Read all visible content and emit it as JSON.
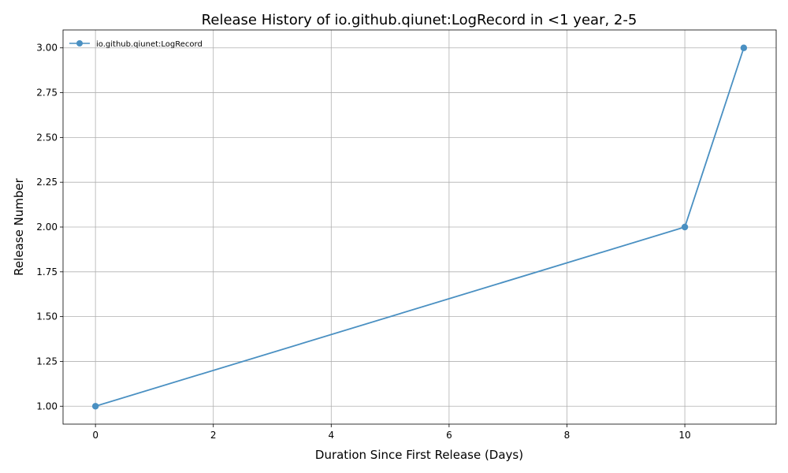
{
  "chart_data": {
    "type": "line",
    "title": "Release History of io.github.qiunet:LogRecord in <1 year, 2-5",
    "xlabel": "Duration Since First Release (Days)",
    "ylabel": "Release Number",
    "xlim": [
      -0.55,
      11.55
    ],
    "ylim": [
      0.9,
      3.1
    ],
    "xticks": [
      0,
      2,
      4,
      6,
      8,
      10
    ],
    "yticks": [
      1.0,
      1.25,
      1.5,
      1.75,
      2.0,
      2.25,
      2.5,
      2.75,
      3.0
    ],
    "xtick_labels": [
      "0",
      "2",
      "4",
      "6",
      "8",
      "10"
    ],
    "ytick_labels": [
      "1.00",
      "1.25",
      "1.50",
      "1.75",
      "2.00",
      "2.25",
      "2.50",
      "2.75",
      "3.00"
    ],
    "grid": true,
    "legend_position": "top-left",
    "series": [
      {
        "name": "io.github.qiunet:LogRecord",
        "color": "#4a90c2",
        "marker": "circle",
        "x": [
          0,
          10,
          11
        ],
        "y": [
          1,
          2,
          3
        ]
      }
    ]
  }
}
